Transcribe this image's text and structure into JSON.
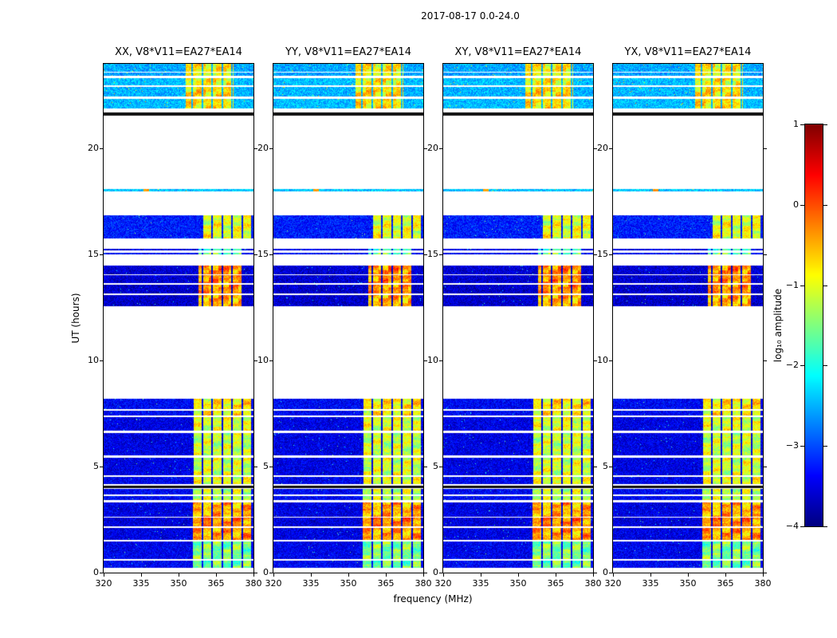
{
  "chart_data": {
    "type": "heatmap",
    "suptitle": "2017-08-17 0.0-24.0",
    "xlabel": "frequency (MHz)",
    "ylabel": "UT (hours)",
    "x_range": [
      320,
      380
    ],
    "y_range": [
      0,
      24
    ],
    "xticks": [
      320,
      335,
      350,
      365,
      380
    ],
    "yticks": [
      0,
      5,
      10,
      15,
      20
    ],
    "colormap": "jet",
    "panels": [
      {
        "title": "XX, V8*V11=EA27*EA14"
      },
      {
        "title": "YY, V8*V11=EA27*EA14"
      },
      {
        "title": "XY, V8*V11=EA27*EA14"
      },
      {
        "title": "YX, V8*V11=EA27*EA14"
      }
    ],
    "colorbar": {
      "label": "log₁₀ amplitude",
      "ticks": [
        1,
        0,
        -1,
        -2,
        -3,
        -4
      ],
      "vmin": -4,
      "vmax": 1
    },
    "flagged_channel_start_mhz": 359.5,
    "flagged_channel_spacing_mhz": 4,
    "flagged_channel_width_mhz": 0.7,
    "bands": [
      {
        "t0": 0.22,
        "t1": 0.55,
        "base": -3.4,
        "rfi": {
          "f0": 355,
          "f1": 380,
          "level": -1.6
        }
      },
      {
        "t0": 0.65,
        "t1": 1.45,
        "base": -3.45,
        "rfi": {
          "f0": 355,
          "f1": 380,
          "level": -1.5
        }
      },
      {
        "t0": 1.55,
        "t1": 2.1,
        "base": -3.5,
        "rfi": {
          "f0": 355,
          "f1": 379,
          "level": -0.45
        }
      },
      {
        "t0": 2.18,
        "t1": 2.6,
        "base": -3.55,
        "rfi": {
          "f0": 355,
          "f1": 379,
          "level": -0.3
        }
      },
      {
        "t0": 2.65,
        "t1": 3.3,
        "base": -3.5,
        "rfi": {
          "f0": 355,
          "f1": 379,
          "level": -0.5
        }
      },
      {
        "t0": 3.42,
        "t1": 3.62,
        "base": -3.4,
        "rfi": {
          "f0": 355,
          "f1": 379,
          "level": -1.2
        }
      },
      {
        "t0": 3.7,
        "t1": 3.95,
        "base": -3.4,
        "rfi": {
          "f0": 355,
          "f1": 379,
          "level": -1.15
        }
      },
      {
        "t0": 3.98,
        "t1": 4.1,
        "black": true
      },
      {
        "t0": 4.18,
        "t1": 4.5,
        "base": -3.45,
        "rfi": {
          "f0": 356,
          "f1": 379,
          "level": -1.0
        }
      },
      {
        "t0": 4.6,
        "t1": 5.42,
        "base": -3.5,
        "rfi": {
          "f0": 356,
          "f1": 379,
          "level": -1.1
        }
      },
      {
        "t0": 5.52,
        "t1": 6.6,
        "base": -3.5,
        "rfi": {
          "f0": 356,
          "f1": 379,
          "level": -1.15
        }
      },
      {
        "t0": 6.68,
        "t1": 7.32,
        "base": -3.5,
        "rfi": {
          "f0": 356,
          "f1": 379,
          "level": -1.05
        }
      },
      {
        "t0": 7.42,
        "t1": 7.62,
        "base": -3.4,
        "rfi": {
          "f0": 356,
          "f1": 380,
          "level": -0.9
        }
      },
      {
        "t0": 7.7,
        "t1": 8.2,
        "base": -3.4,
        "rfi": {
          "f0": 356,
          "f1": 380,
          "level": -0.8
        }
      },
      {
        "t0": 12.55,
        "t1": 13.1,
        "base": -3.65,
        "rfi": {
          "f0": 358,
          "f1": 376,
          "level": -0.5
        }
      },
      {
        "t0": 13.18,
        "t1": 13.58,
        "base": -3.65,
        "rfi": {
          "f0": 358,
          "f1": 376,
          "level": -0.4
        }
      },
      {
        "t0": 13.64,
        "t1": 14.02,
        "base": -3.6,
        "rfi": {
          "f0": 358,
          "f1": 376,
          "level": -0.35
        }
      },
      {
        "t0": 14.08,
        "t1": 14.5,
        "base": -3.6,
        "rfi": {
          "f0": 358,
          "f1": 376,
          "level": -0.3
        }
      },
      {
        "t0": 15.0,
        "t1": 15.1,
        "base": -3.4,
        "rfi": {
          "f0": 358,
          "f1": 376,
          "level": -1.6
        }
      },
      {
        "t0": 15.18,
        "t1": 15.26,
        "base": -3.5,
        "rfi": {
          "f0": 358,
          "f1": 376,
          "level": -1.8
        }
      },
      {
        "t0": 15.78,
        "t1": 16.85,
        "base": -3.25,
        "rfi": {
          "f0": 360,
          "f1": 380,
          "level": -1.0
        }
      },
      {
        "t0": 18.0,
        "t1": 18.1,
        "base": -2.4,
        "dot": {
          "f": 337,
          "level": -0.4
        }
      },
      {
        "t0": 21.55,
        "t1": 21.7,
        "black": true
      },
      {
        "t0": 21.88,
        "t1": 22.35,
        "base": -2.45,
        "rfi": {
          "f0": 353,
          "f1": 372,
          "level": -0.75
        }
      },
      {
        "t0": 22.45,
        "t1": 22.92,
        "base": -2.5,
        "rfi": {
          "f0": 353,
          "f1": 372,
          "level": -0.7
        }
      },
      {
        "t0": 22.98,
        "t1": 23.32,
        "base": -2.45,
        "rfi": {
          "f0": 353,
          "f1": 372,
          "level": -0.85
        }
      },
      {
        "t0": 23.42,
        "t1": 23.58,
        "base": -2.6,
        "rfi": {
          "f0": 353,
          "f1": 372,
          "level": -1.0
        }
      },
      {
        "t0": 23.64,
        "t1": 24.0,
        "base": -2.55,
        "rfi": {
          "f0": 353,
          "f1": 372,
          "level": -0.8
        }
      }
    ]
  }
}
